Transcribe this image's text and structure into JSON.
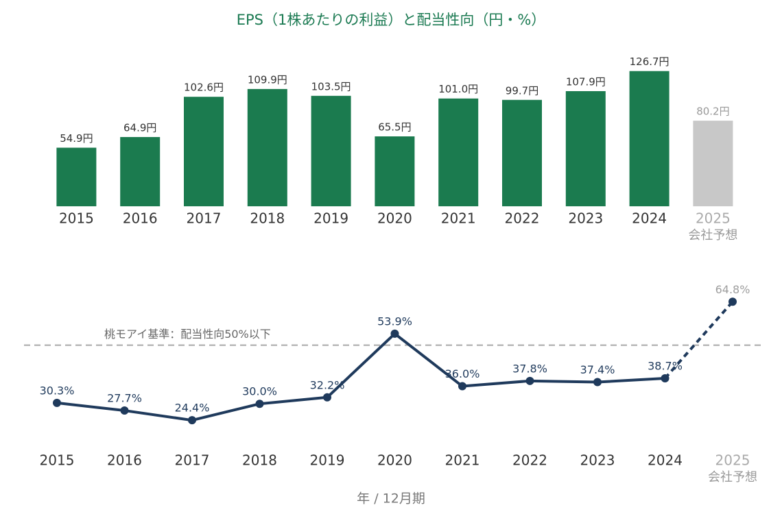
{
  "chart_data": [
    {
      "type": "bar",
      "title": "EPS（1株あたりの利益）と配当性向（円・%）",
      "categories": [
        "2015",
        "2016",
        "2017",
        "2018",
        "2019",
        "2020",
        "2021",
        "2022",
        "2023",
        "2024",
        "2025"
      ],
      "forecast": [
        false,
        false,
        false,
        false,
        false,
        false,
        false,
        false,
        false,
        false,
        true
      ],
      "forecast_note": "会社予想",
      "values": [
        54.9,
        64.9,
        102.6,
        109.9,
        103.5,
        65.5,
        101.0,
        99.7,
        107.9,
        126.7,
        80.2
      ],
      "value_labels": [
        "54.9円",
        "64.9円",
        "102.6円",
        "109.9円",
        "103.5円",
        "65.5円",
        "101.0円",
        "99.7円",
        "107.9円",
        "126.7円",
        "80.2円"
      ],
      "color": "#1b7b4f",
      "forecast_color": "#c8c8c8",
      "ylim": [
        0,
        140
      ]
    },
    {
      "type": "line",
      "categories": [
        "2015",
        "2016",
        "2017",
        "2018",
        "2019",
        "2020",
        "2021",
        "2022",
        "2023",
        "2024",
        "2025"
      ],
      "forecast": [
        false,
        false,
        false,
        false,
        false,
        false,
        false,
        false,
        false,
        false,
        true
      ],
      "forecast_note": "会社予想",
      "values": [
        30.3,
        27.7,
        24.4,
        30.0,
        32.2,
        53.9,
        36.0,
        37.8,
        37.4,
        38.7,
        64.8
      ],
      "value_labels": [
        "30.3%",
        "27.7%",
        "24.4%",
        "30.0%",
        "32.2%",
        "53.9%",
        "36.0%",
        "37.8%",
        "37.4%",
        "38.7%",
        "64.8%"
      ],
      "color": "#1f3a5c",
      "forecast_color": "#9e9e9e",
      "reference": {
        "value": 50,
        "label": "桃モアイ基準：配当性向50%以下"
      },
      "reference_color": "#a8a8a8",
      "ylim": [
        20,
        70
      ],
      "xlabel": "年 / 12月期"
    }
  ]
}
